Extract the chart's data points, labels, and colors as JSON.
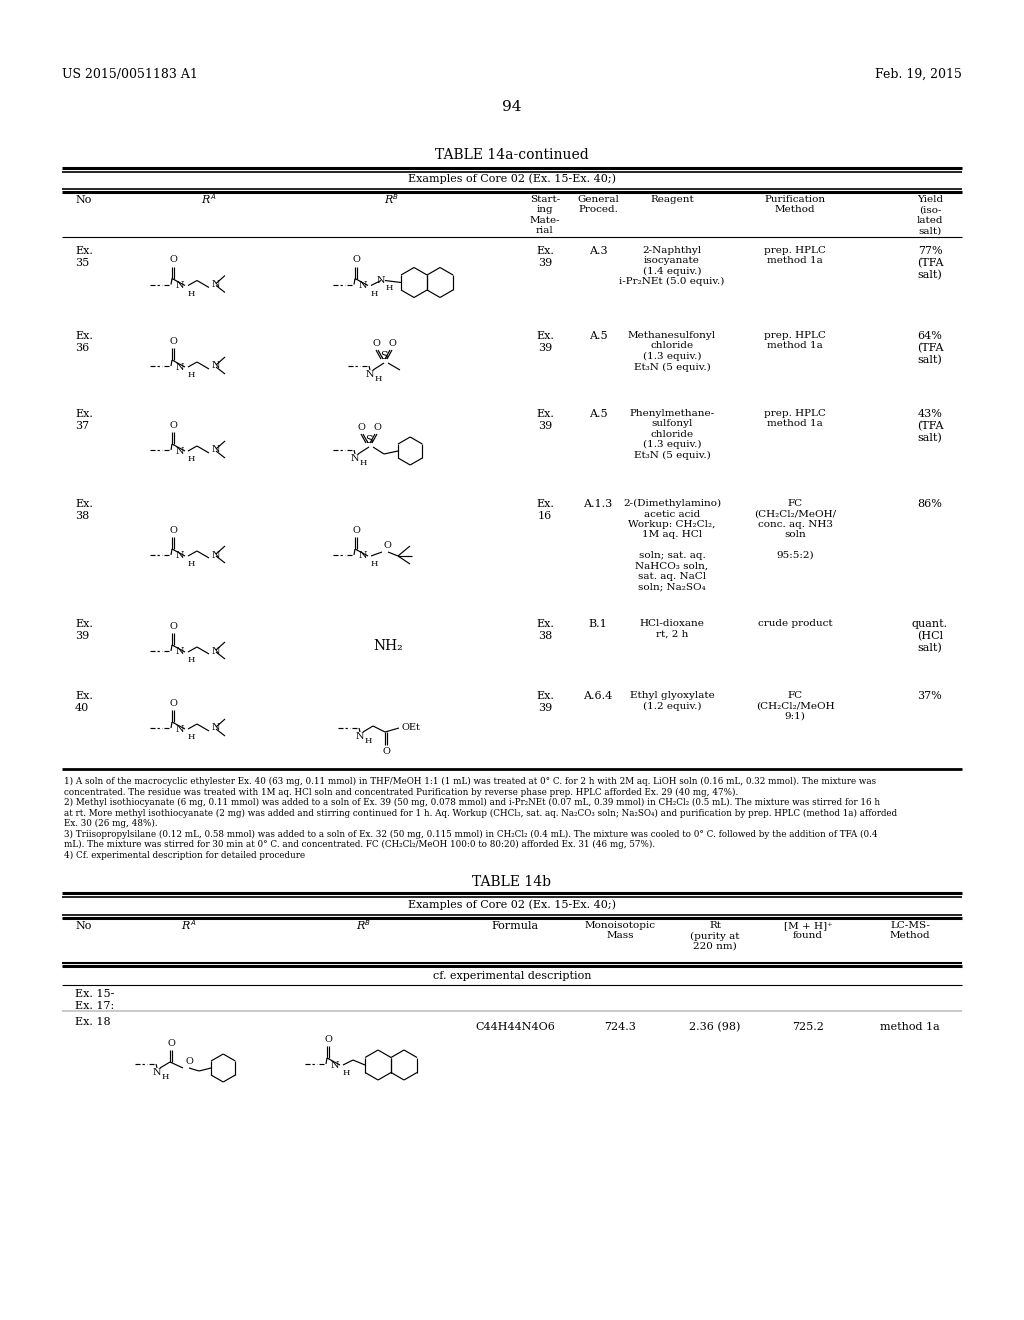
{
  "bg": "#ffffff",
  "header_left": "US 2015/0051183 A1",
  "header_right": "Feb. 19, 2015",
  "page_number": "94",
  "table1_title": "TABLE 14a-continued",
  "table1_subtitle": "Examples of Core 02 (Ex. 15-Ex. 40;)",
  "table2_title": "TABLE 14b",
  "table2_subtitle": "Examples of Core 02 (Ex. 15-Ex. 40;)",
  "footnotes": [
    "1) A soln of the macrocyclic ethylester Ex. 40 (63 mg, 0.11 mmol) in THF/MeOH 1:1 (1 mL) was treated at 0° C. for 2 h with 2M aq. LiOH soln (0.16 mL, 0.32 mmol). The mixture was",
    "concentrated. The residue was treated with 1M aq. HCl soln and concentrated Purification by reverse phase prep. HPLC afforded Ex. 29 (40 mg, 47%).",
    "2) Methyl isothiocyanate (6 mg, 0.11 mmol) was added to a soln of Ex. 39 (50 mg, 0.078 mmol) and i-Pr₂NEt (0.07 mL, 0.39 mmol) in CH₂Cl₂ (0.5 mL). The mixture was stirred for 16 h",
    "at rt. More methyl isothiocyanate (2 mg) was added and stirring continued for 1 h. Aq. Workup (CHCl₃, sat. aq. Na₂CO₃ soln; Na₂SO₄) and purification by prep. HPLC (method 1a) afforded",
    "Ex. 30 (26 mg, 48%).",
    "3) Triisopropylsilane (0.12 mL, 0.58 mmol) was added to a soln of Ex. 32 (50 mg, 0.115 mmol) in CH₂Cl₂ (0.4 mL). The mixture was cooled to 0° C. followed by the addition of TFA (0.4",
    "mL). The mixture was stirred for 30 min at 0° C. and concentrated. FC (CH₂Cl₂/MeOH 100:0 to 80:20) afforded Ex. 31 (46 mg, 57%).",
    "4) Cf. experimental description for detailed procedure"
  ],
  "rows": [
    {
      "no": "Ex.\n35",
      "rb_desc": "naphthamide",
      "start": "Ex.\n39",
      "proc": "A.3",
      "reagent": "2-Naphthyl\nisocyanate\n(1.4 equiv.)\ni-Pr₂NEt (5.0 equiv.)",
      "purif": "prep. HPLC\nmethod 1a",
      "yield": "77%\n(TFA\nsalt)"
    },
    {
      "no": "Ex.\n36",
      "rb_desc": "methanesulfonyl",
      "start": "Ex.\n39",
      "proc": "A.5",
      "reagent": "Methanesulfonyl\nchloride\n(1.3 equiv.)\nEt₃N (5 equiv.)",
      "purif": "prep. HPLC\nmethod 1a",
      "yield": "64%\n(TFA\nsalt)"
    },
    {
      "no": "Ex.\n37",
      "rb_desc": "phenylmethanesulfonyl",
      "start": "Ex.\n39",
      "proc": "A.5",
      "reagent": "Phenylmethane-\nsulfonyl\nchloride\n(1.3 equiv.)\nEt₃N (5 equiv.)",
      "purif": "prep. HPLC\nmethod 1a",
      "yield": "43%\n(TFA\nsalt)"
    },
    {
      "no": "Ex.\n38",
      "rb_desc": "boc_amide",
      "start": "Ex.\n16",
      "proc": "A.1.3",
      "reagent": "2-(Dimethylamino)\nacetic acid\nWorkup: CH₂Cl₂,\n1M aq. HCl\n\nsoln; sat. aq.\nNaHCO₃ soln,\nsat. aq. NaCl\nsoln; Na₂SO₄",
      "purif": "FC\n(CH₂Cl₂/MeOH/\nconc. aq. NH3\nsoln\n\n95:5:2)",
      "yield": "86%"
    },
    {
      "no": "Ex.\n39",
      "rb_desc": "nh2",
      "start": "Ex.\n38",
      "proc": "B.1",
      "reagent": "HCl-dioxane\nrt, 2 h",
      "purif": "crude product",
      "yield": "quant.\n(HCl\nsalt)"
    },
    {
      "no": "Ex.\n40",
      "rb_desc": "ethyl_glyoxylate",
      "start": "Ex.\n39",
      "proc": "A.6.4",
      "reagent": "Ethyl glyoxylate\n(1.2 equiv.)",
      "purif": "FC\n(CH₂Cl₂/MeOH\n9:1)",
      "yield": "37%"
    }
  ],
  "t2_ex18_formula": "C44H44N4O6",
  "t2_ex18_mass": "724.3",
  "t2_ex18_rt": "2.36 (98)",
  "t2_ex18_mh": "725.2",
  "t2_ex18_lcms": "method 1a"
}
